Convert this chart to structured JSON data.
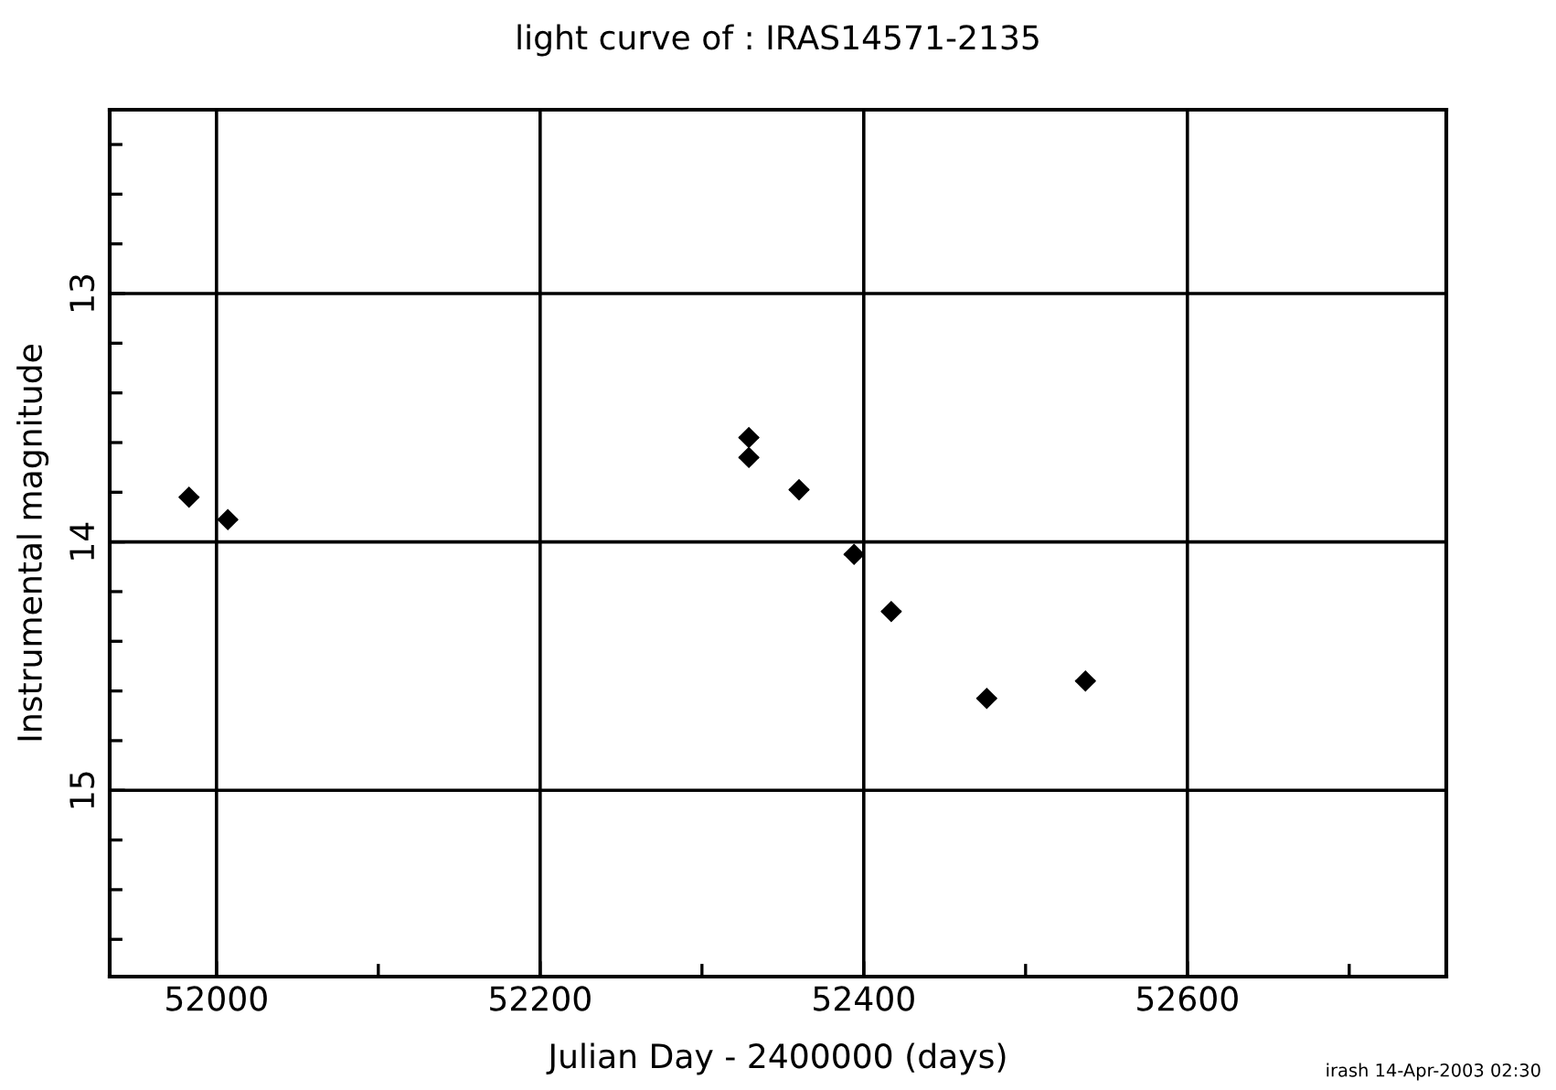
{
  "chart_data": {
    "type": "scatter",
    "title": "light curve of : IRAS14571-2135",
    "xlabel": "Julian Day - 2400000 (days)",
    "ylabel": "Instrumental magnitude",
    "x": [
      51983,
      52007,
      52329,
      52329,
      52360,
      52394,
      52417,
      52476,
      52537
    ],
    "series": [
      {
        "color": "#000000",
        "values": [
          13.82,
          13.91,
          13.58,
          13.66,
          13.79,
          14.05,
          14.28,
          14.63,
          14.56
        ],
        "xerrors": [
          6,
          6,
          6,
          6,
          6,
          6,
          6,
          6,
          6
        ]
      }
    ],
    "xlim": [
      51934,
      52760
    ],
    "ylim": [
      15.75,
      12.26
    ],
    "xticks": [
      52000,
      {
        "value": 52100,
        "label": null
      },
      52200,
      {
        "value": 52300,
        "label": null
      },
      52400,
      {
        "value": 52500,
        "label": null
      },
      52600,
      {
        "value": 52700,
        "label": null
      }
    ],
    "yticks": [
      {
        "value": 12.4,
        "label": null
      },
      {
        "value": 12.6,
        "label": null
      },
      {
        "value": 12.8,
        "label": null
      },
      13,
      {
        "value": 13.2,
        "label": null
      },
      {
        "value": 13.4,
        "label": null
      },
      {
        "value": 13.6,
        "label": null
      },
      {
        "value": 13.8,
        "label": null
      },
      14,
      {
        "value": 14.2,
        "label": null
      },
      {
        "value": 14.4,
        "label": null
      },
      {
        "value": 14.6,
        "label": null
      },
      {
        "value": 14.8,
        "label": null
      },
      15,
      {
        "value": 15.2,
        "label": null
      },
      {
        "value": 15.4,
        "label": null
      },
      {
        "value": 15.6,
        "label": null
      }
    ],
    "grid": true,
    "marker": "diamond",
    "annotations": [
      "irash 14-Apr-2003 02:30"
    ]
  }
}
